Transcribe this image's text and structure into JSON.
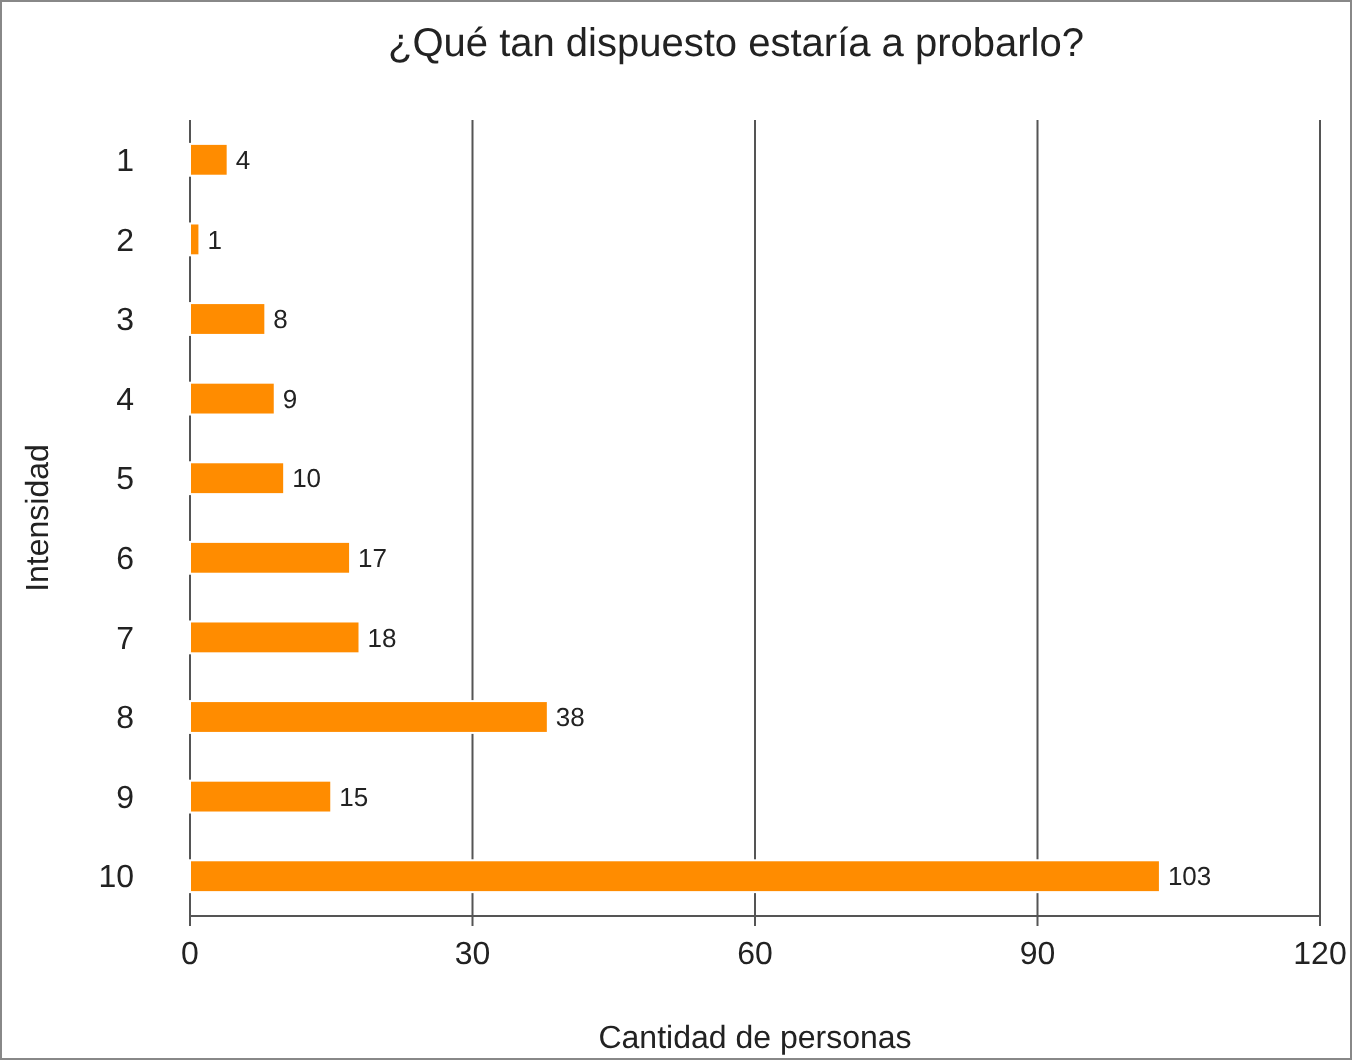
{
  "chart_data": {
    "type": "bar",
    "orientation": "horizontal",
    "title": "¿Qué tan dispuesto estaría a probarlo?",
    "xlabel": "Cantidad de personas",
    "ylabel": "Intensidad",
    "categories": [
      "1",
      "2",
      "3",
      "4",
      "5",
      "6",
      "7",
      "8",
      "9",
      "10"
    ],
    "values": [
      4,
      1,
      8,
      9,
      10,
      17,
      18,
      38,
      15,
      103
    ],
    "color": "#ff8c00",
    "xlim": [
      0,
      120
    ],
    "xticks": [
      0,
      30,
      60,
      90,
      120
    ],
    "grid": "x",
    "data_labels": true
  }
}
